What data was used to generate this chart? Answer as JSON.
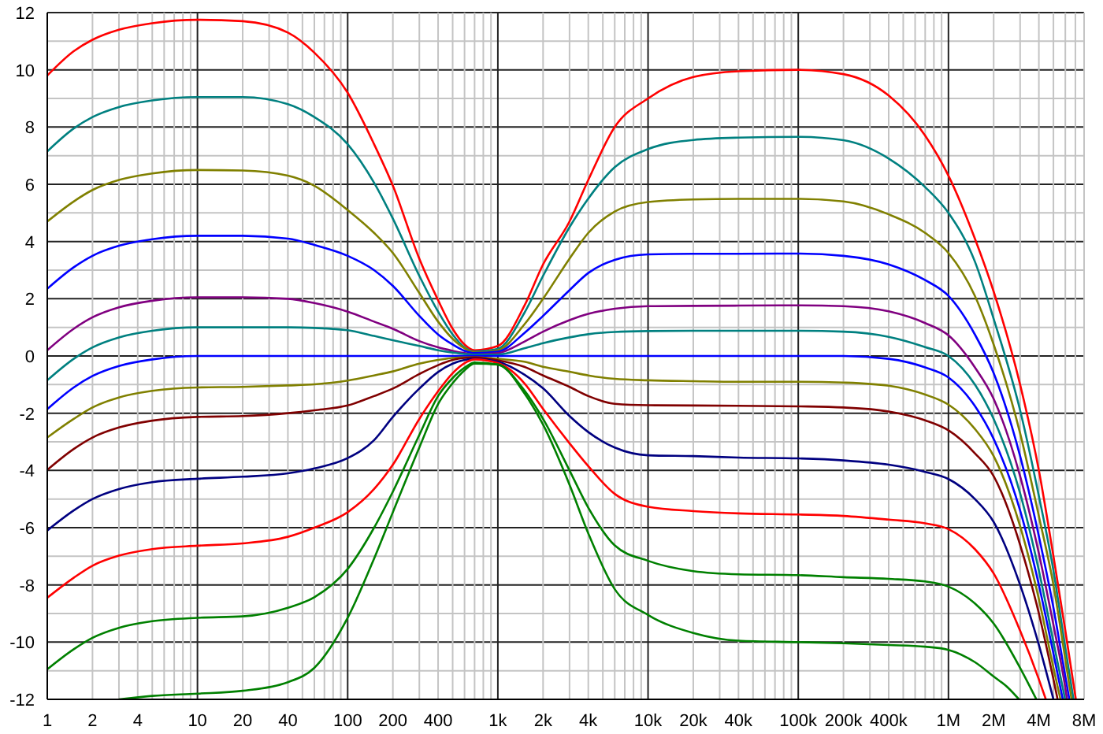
{
  "chart_data": {
    "type": "line",
    "log": "x",
    "grid": true,
    "marker": "none",
    "line_style": "solid",
    "xlim": [
      1,
      8000000
    ],
    "ylim": [
      -12,
      12
    ],
    "xticks": [
      1,
      2,
      {
        "value": 3,
        "label": null
      },
      4,
      {
        "value": 5,
        "label": null
      },
      {
        "value": 6,
        "label": null
      },
      {
        "value": 7,
        "label": null
      },
      {
        "value": 8,
        "label": null
      },
      {
        "value": 9,
        "label": null
      },
      10,
      20,
      {
        "value": 30,
        "label": null
      },
      40,
      {
        "value": 50,
        "label": null
      },
      {
        "value": 60,
        "label": null
      },
      {
        "value": 70,
        "label": null
      },
      {
        "value": 80,
        "label": null
      },
      {
        "value": 90,
        "label": null
      },
      100,
      200,
      {
        "value": 300,
        "label": null
      },
      400,
      {
        "value": 500,
        "label": null
      },
      {
        "value": 600,
        "label": null
      },
      {
        "value": 700,
        "label": null
      },
      {
        "value": 800,
        "label": null
      },
      {
        "value": 900,
        "label": null
      },
      {
        "value": 1000,
        "label": "1k"
      },
      {
        "value": 2000,
        "label": "2k"
      },
      {
        "value": 3000,
        "label": null
      },
      {
        "value": 4000,
        "label": "4k"
      },
      {
        "value": 5000,
        "label": null
      },
      {
        "value": 6000,
        "label": null
      },
      {
        "value": 7000,
        "label": null
      },
      {
        "value": 8000,
        "label": null
      },
      {
        "value": 9000,
        "label": null
      },
      {
        "value": 10000,
        "label": "10k"
      },
      {
        "value": 20000,
        "label": "20k"
      },
      {
        "value": 30000,
        "label": null
      },
      {
        "value": 40000,
        "label": "40k"
      },
      {
        "value": 50000,
        "label": null
      },
      {
        "value": 60000,
        "label": null
      },
      {
        "value": 70000,
        "label": null
      },
      {
        "value": 80000,
        "label": null
      },
      {
        "value": 90000,
        "label": null
      },
      {
        "value": 100000,
        "label": "100k"
      },
      {
        "value": 200000,
        "label": "200k"
      },
      {
        "value": 300000,
        "label": null
      },
      {
        "value": 400000,
        "label": "400k"
      },
      {
        "value": 500000,
        "label": null
      },
      {
        "value": 600000,
        "label": null
      },
      {
        "value": 700000,
        "label": null
      },
      {
        "value": 800000,
        "label": null
      },
      {
        "value": 900000,
        "label": null
      },
      {
        "value": 1000000,
        "label": "1M"
      },
      {
        "value": 2000000,
        "label": "2M"
      },
      {
        "value": 3000000,
        "label": null
      },
      {
        "value": 4000000,
        "label": "4M"
      },
      {
        "value": 5000000,
        "label": null
      },
      {
        "value": 6000000,
        "label": null
      },
      {
        "value": 7000000,
        "label": null
      },
      {
        "value": 8000000,
        "label": "8M"
      }
    ],
    "yticks": [
      -12,
      {
        "value": -11,
        "label": null
      },
      -10,
      {
        "value": -9,
        "label": null
      },
      -8,
      {
        "value": -7,
        "label": null
      },
      -6,
      {
        "value": -5,
        "label": null
      },
      -4,
      {
        "value": -3,
        "label": null
      },
      -2,
      {
        "value": -1,
        "label": null
      },
      0,
      {
        "value": 1,
        "label": null
      },
      2,
      {
        "value": 3,
        "label": null
      },
      4,
      {
        "value": 5,
        "label": null
      },
      6,
      {
        "value": 7,
        "label": null
      },
      8,
      {
        "value": 9,
        "label": null
      },
      10,
      {
        "value": 11,
        "label": null
      },
      12
    ],
    "series": [
      {
        "color": "#ff0000",
        "x": [
          1,
          1.5,
          2,
          3,
          5,
          10,
          20,
          40,
          60,
          100,
          150,
          200,
          300,
          400,
          500,
          600,
          700,
          1000,
          1500,
          2000,
          3000,
          4000,
          6000,
          10000,
          20000,
          40000,
          100000,
          200000,
          400000,
          700000,
          1000000,
          1500000,
          2000000,
          3000000,
          4000000,
          5000000,
          6000000,
          7050000
        ],
        "values": [
          9.8,
          10.65,
          11.05,
          11.4,
          11.63,
          11.75,
          11.7,
          11.3,
          10.6,
          9.2,
          7.4,
          5.95,
          3.4,
          1.95,
          0.95,
          0.4,
          0.2,
          0.35,
          1.75,
          3.2,
          4.7,
          6.15,
          8.0,
          9.0,
          9.75,
          9.95,
          10.0,
          9.85,
          9.1,
          7.7,
          6.3,
          4.1,
          2.25,
          -1.0,
          -4.0,
          -7.0,
          -9.6,
          -12
        ]
      },
      {
        "color": "#008080",
        "x": [
          1,
          1.5,
          2,
          3,
          5,
          10,
          20,
          40,
          60,
          100,
          150,
          200,
          300,
          400,
          500,
          600,
          700,
          1000,
          1500,
          2000,
          3000,
          4000,
          6000,
          10000,
          20000,
          40000,
          100000,
          200000,
          400000,
          700000,
          1000000,
          1500000,
          2000000,
          3000000,
          4000000,
          5000000,
          6000000,
          6800000
        ],
        "values": [
          7.15,
          7.95,
          8.35,
          8.7,
          8.93,
          9.05,
          9.05,
          8.8,
          8.35,
          7.4,
          6.05,
          4.8,
          2.8,
          1.55,
          0.75,
          0.3,
          0.15,
          0.25,
          1.5,
          2.8,
          4.5,
          5.5,
          6.6,
          7.23,
          7.55,
          7.63,
          7.66,
          7.54,
          6.9,
          5.9,
          5.0,
          3.3,
          1.3,
          -1.9,
          -4.9,
          -7.5,
          -10.2,
          -12
        ]
      },
      {
        "color": "#808000",
        "x": [
          1,
          1.5,
          2,
          3,
          5,
          10,
          20,
          40,
          60,
          100,
          150,
          200,
          300,
          400,
          500,
          600,
          700,
          1000,
          1500,
          2000,
          3000,
          4000,
          6000,
          10000,
          20000,
          40000,
          100000,
          200000,
          400000,
          700000,
          1000000,
          1500000,
          2000000,
          3000000,
          4000000,
          5000000,
          6000000,
          6600000
        ],
        "values": [
          4.7,
          5.4,
          5.8,
          6.15,
          6.38,
          6.5,
          6.48,
          6.3,
          5.95,
          5.1,
          4.3,
          3.6,
          2.2,
          1.2,
          0.6,
          0.27,
          0.12,
          0.2,
          1.1,
          2.0,
          3.4,
          4.3,
          5.05,
          5.38,
          5.47,
          5.49,
          5.49,
          5.4,
          4.95,
          4.3,
          3.6,
          2.1,
          0.4,
          -2.7,
          -5.6,
          -8.0,
          -10.6,
          -12
        ]
      },
      {
        "color": "#0000ff",
        "x": [
          1,
          1.5,
          2,
          3,
          5,
          10,
          20,
          40,
          60,
          100,
          150,
          200,
          300,
          400,
          500,
          600,
          700,
          1000,
          1500,
          2000,
          3000,
          4000,
          6000,
          10000,
          20000,
          40000,
          100000,
          200000,
          400000,
          700000,
          1000000,
          1500000,
          2000000,
          3000000,
          4000000,
          5000000,
          6000000,
          6380000
        ],
        "values": [
          2.35,
          3.1,
          3.5,
          3.85,
          4.08,
          4.2,
          4.2,
          4.1,
          3.88,
          3.5,
          3.0,
          2.45,
          1.4,
          0.75,
          0.4,
          0.18,
          0.1,
          0.15,
          0.8,
          1.4,
          2.3,
          2.9,
          3.36,
          3.55,
          3.57,
          3.57,
          3.58,
          3.5,
          3.2,
          2.65,
          2.1,
          0.75,
          -0.6,
          -3.5,
          -6.3,
          -8.8,
          -11.2,
          -12
        ]
      },
      {
        "color": "#800080",
        "x": [
          1,
          1.5,
          2,
          3,
          5,
          10,
          20,
          40,
          60,
          100,
          150,
          200,
          300,
          400,
          500,
          600,
          700,
          1000,
          1500,
          2000,
          3000,
          4000,
          6000,
          10000,
          20000,
          40000,
          100000,
          200000,
          400000,
          700000,
          1000000,
          1500000,
          2000000,
          3000000,
          4000000,
          5000000,
          6000000,
          6160000
        ],
        "values": [
          0.2,
          0.95,
          1.35,
          1.7,
          1.93,
          2.05,
          2.05,
          2.0,
          1.85,
          1.55,
          1.2,
          0.95,
          0.52,
          0.3,
          0.18,
          0.1,
          0.05,
          0.1,
          0.5,
          0.85,
          1.25,
          1.47,
          1.65,
          1.74,
          1.75,
          1.76,
          1.77,
          1.74,
          1.56,
          1.15,
          0.72,
          -0.4,
          -1.5,
          -4.2,
          -6.9,
          -9.4,
          -11.6,
          -12
        ]
      },
      {
        "color": "#008080",
        "x": [
          1,
          1.5,
          2,
          3,
          5,
          10,
          20,
          40,
          60,
          100,
          150,
          200,
          300,
          400,
          500,
          600,
          700,
          1000,
          1500,
          2000,
          3000,
          4000,
          6000,
          10000,
          20000,
          40000,
          100000,
          200000,
          400000,
          700000,
          1000000,
          1500000,
          2000000,
          3000000,
          4000000,
          5000000,
          5980000
        ],
        "values": [
          -0.85,
          -0.1,
          0.3,
          0.65,
          0.88,
          1.0,
          1.0,
          1.0,
          0.98,
          0.9,
          0.7,
          0.55,
          0.35,
          0.2,
          0.12,
          0.07,
          0.05,
          0.05,
          0.27,
          0.45,
          0.65,
          0.76,
          0.84,
          0.87,
          0.88,
          0.88,
          0.88,
          0.85,
          0.67,
          0.31,
          0.0,
          -1.0,
          -2.2,
          -4.8,
          -7.5,
          -10.0,
          -12
        ]
      },
      {
        "color": "#0000ff",
        "x": [
          1,
          1.5,
          2,
          3,
          5,
          10,
          20,
          40,
          60,
          100,
          150,
          200,
          300,
          400,
          500,
          600,
          700,
          1000,
          1500,
          2000,
          3000,
          4000,
          6000,
          10000,
          20000,
          40000,
          100000,
          200000,
          400000,
          700000,
          1000000,
          1500000,
          2000000,
          3000000,
          4000000,
          5000000,
          5770000
        ],
        "values": [
          -1.86,
          -1.1,
          -0.7,
          -0.35,
          -0.12,
          0,
          0,
          0,
          0,
          0,
          0,
          0,
          0,
          0,
          0,
          0,
          0,
          0,
          0,
          0,
          0,
          0,
          0,
          0,
          0,
          0,
          0,
          0,
          -0.1,
          -0.4,
          -0.75,
          -1.75,
          -2.9,
          -5.4,
          -8.0,
          -10.4,
          -12
        ]
      },
      {
        "color": "#808000",
        "x": [
          1,
          1.5,
          2,
          3,
          5,
          10,
          20,
          40,
          60,
          100,
          150,
          200,
          300,
          400,
          500,
          600,
          700,
          1000,
          1500,
          2000,
          3000,
          4000,
          6000,
          10000,
          20000,
          40000,
          100000,
          200000,
          400000,
          700000,
          1000000,
          1500000,
          2000000,
          3000000,
          4000000,
          5000000,
          5570000
        ],
        "values": [
          -2.85,
          -2.2,
          -1.8,
          -1.45,
          -1.22,
          -1.1,
          -1.08,
          -1.03,
          -0.99,
          -0.86,
          -0.68,
          -0.54,
          -0.27,
          -0.14,
          -0.07,
          -0.05,
          -0.05,
          -0.1,
          -0.2,
          -0.38,
          -0.55,
          -0.68,
          -0.8,
          -0.85,
          -0.88,
          -0.9,
          -0.9,
          -0.93,
          -1.04,
          -1.35,
          -1.7,
          -2.55,
          -3.5,
          -5.95,
          -8.5,
          -10.9,
          -12
        ]
      },
      {
        "color": "#800000",
        "x": [
          1,
          1.5,
          2,
          3,
          5,
          10,
          20,
          40,
          60,
          100,
          150,
          200,
          300,
          400,
          500,
          600,
          700,
          1000,
          1500,
          2000,
          3000,
          4000,
          6000,
          10000,
          20000,
          40000,
          100000,
          200000,
          400000,
          700000,
          1000000,
          1500000,
          2000000,
          3000000,
          4000000,
          5000000,
          5330000
        ],
        "values": [
          -3.98,
          -3.25,
          -2.85,
          -2.5,
          -2.26,
          -2.13,
          -2.1,
          -2.0,
          -1.9,
          -1.73,
          -1.4,
          -1.14,
          -0.63,
          -0.32,
          -0.14,
          -0.07,
          -0.05,
          -0.15,
          -0.38,
          -0.68,
          -1.08,
          -1.4,
          -1.67,
          -1.72,
          -1.73,
          -1.74,
          -1.76,
          -1.8,
          -1.94,
          -2.25,
          -2.6,
          -3.4,
          -4.2,
          -6.6,
          -9.0,
          -11.3,
          -12
        ]
      },
      {
        "color": "#000080",
        "x": [
          1,
          1.5,
          2,
          3,
          5,
          10,
          20,
          40,
          60,
          100,
          150,
          200,
          300,
          400,
          500,
          600,
          700,
          1000,
          1500,
          2000,
          3000,
          4000,
          6000,
          10000,
          20000,
          40000,
          100000,
          200000,
          400000,
          700000,
          1000000,
          1500000,
          2000000,
          3000000,
          4000000,
          5000000
        ],
        "values": [
          -6.1,
          -5.4,
          -5.0,
          -4.65,
          -4.41,
          -4.29,
          -4.22,
          -4.1,
          -3.93,
          -3.57,
          -2.94,
          -2.13,
          -1.14,
          -0.56,
          -0.27,
          -0.14,
          -0.1,
          -0.2,
          -0.65,
          -1.13,
          -2.1,
          -2.66,
          -3.2,
          -3.47,
          -3.5,
          -3.55,
          -3.58,
          -3.65,
          -3.8,
          -4.05,
          -4.3,
          -5.0,
          -5.8,
          -8.0,
          -10.1,
          -12
        ]
      },
      {
        "color": "#ff0000",
        "x": [
          1,
          1.5,
          2,
          3,
          5,
          10,
          20,
          40,
          60,
          100,
          150,
          200,
          300,
          400,
          500,
          600,
          700,
          1000,
          1500,
          2000,
          3000,
          4000,
          6000,
          10000,
          20000,
          40000,
          100000,
          200000,
          400000,
          700000,
          1000000,
          1500000,
          2000000,
          3000000,
          4000000,
          4450000
        ],
        "values": [
          -8.45,
          -7.75,
          -7.33,
          -6.98,
          -6.75,
          -6.63,
          -6.55,
          -6.32,
          -6.0,
          -5.46,
          -4.65,
          -3.8,
          -2.2,
          -1.23,
          -0.6,
          -0.25,
          -0.12,
          -0.25,
          -0.95,
          -1.85,
          -3.05,
          -3.85,
          -4.82,
          -5.27,
          -5.42,
          -5.5,
          -5.54,
          -5.59,
          -5.72,
          -5.85,
          -6.05,
          -6.75,
          -7.6,
          -9.6,
          -11.3,
          -12
        ]
      },
      {
        "color": "#008000",
        "x": [
          1,
          1.5,
          2,
          3,
          5,
          10,
          20,
          40,
          60,
          100,
          150,
          200,
          300,
          400,
          500,
          600,
          700,
          1000,
          1500,
          2000,
          3000,
          4000,
          6000,
          10000,
          20000,
          40000,
          100000,
          200000,
          400000,
          700000,
          1000000,
          1500000,
          2000000,
          3000000,
          3850000
        ],
        "values": [
          -10.95,
          -10.25,
          -9.85,
          -9.5,
          -9.27,
          -9.15,
          -9.1,
          -8.8,
          -8.43,
          -7.44,
          -6.0,
          -4.74,
          -2.76,
          -1.4,
          -0.77,
          -0.41,
          -0.23,
          -0.3,
          -1.2,
          -2.2,
          -4.0,
          -5.3,
          -6.62,
          -7.16,
          -7.52,
          -7.63,
          -7.66,
          -7.73,
          -7.79,
          -7.88,
          -8.06,
          -8.65,
          -9.35,
          -10.9,
          -12
        ]
      },
      {
        "color": "#008000",
        "x": [
          3,
          5,
          10,
          20,
          40,
          60,
          100,
          150,
          200,
          300,
          400,
          500,
          600,
          700,
          1000,
          1500,
          2000,
          3000,
          4000,
          6000,
          10000,
          20000,
          40000,
          100000,
          200000,
          400000,
          700000,
          1000000,
          1500000,
          2000000,
          2500000,
          2950000
        ],
        "values": [
          -12,
          -11.88,
          -11.8,
          -11.7,
          -11.4,
          -10.9,
          -9.15,
          -7.08,
          -5.46,
          -3.2,
          -1.68,
          -0.95,
          -0.5,
          -0.27,
          -0.3,
          -1.3,
          -2.4,
          -4.5,
          -6.2,
          -8.15,
          -9.05,
          -9.68,
          -9.95,
          -10.0,
          -10.04,
          -10.1,
          -10.16,
          -10.27,
          -10.7,
          -11.2,
          -11.6,
          -12
        ]
      }
    ]
  }
}
